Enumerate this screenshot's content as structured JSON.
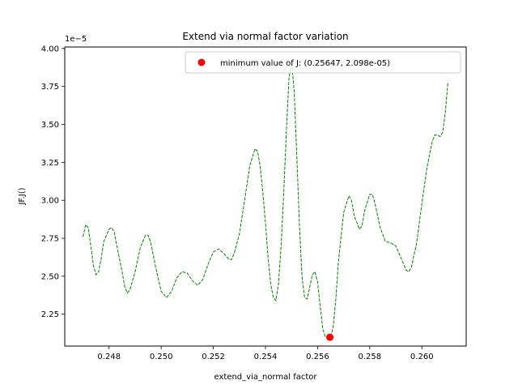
{
  "chart_data": {
    "type": "line",
    "title": "Extend via normal factor variation",
    "xlabel": "extend_via_normal factor",
    "ylabel": "JF.J()",
    "y_offset_text": "1e−5",
    "y_scale_exp": -5,
    "xlim": [
      0.2463,
      0.2617
    ],
    "ylim": [
      2.04,
      4.01
    ],
    "x_ticks": [
      0.248,
      0.25,
      0.252,
      0.254,
      0.256,
      0.258,
      0.26
    ],
    "x_tick_labels": [
      "0.248",
      "0.250",
      "0.252",
      "0.254",
      "0.256",
      "0.258",
      "0.260"
    ],
    "y_ticks": [
      2.25,
      2.5,
      2.75,
      3.0,
      3.25,
      3.5,
      3.75,
      4.0
    ],
    "y_tick_labels": [
      "2.25",
      "2.50",
      "2.75",
      "3.00",
      "3.25",
      "3.50",
      "3.75",
      "4.00"
    ],
    "grid": false,
    "legend_position": "top-right",
    "series": [
      {
        "color": "#008000",
        "linestyle": "dashed",
        "points": [
          [
            0.247,
            2.76
          ],
          [
            0.2471,
            2.84
          ],
          [
            0.2472,
            2.82
          ],
          [
            0.2473,
            2.7
          ],
          [
            0.2474,
            2.57
          ],
          [
            0.2475,
            2.51
          ],
          [
            0.2476,
            2.53
          ],
          [
            0.2477,
            2.62
          ],
          [
            0.2478,
            2.73
          ],
          [
            0.248,
            2.81
          ],
          [
            0.2481,
            2.82
          ],
          [
            0.2482,
            2.79
          ],
          [
            0.2483,
            2.7
          ],
          [
            0.2485,
            2.53
          ],
          [
            0.2486,
            2.43
          ],
          [
            0.2487,
            2.39
          ],
          [
            0.2488,
            2.41
          ],
          [
            0.249,
            2.53
          ],
          [
            0.2492,
            2.69
          ],
          [
            0.2494,
            2.77
          ],
          [
            0.2495,
            2.77
          ],
          [
            0.2496,
            2.72
          ],
          [
            0.2498,
            2.55
          ],
          [
            0.25,
            2.4
          ],
          [
            0.2502,
            2.36
          ],
          [
            0.2504,
            2.4
          ],
          [
            0.2506,
            2.49
          ],
          [
            0.2508,
            2.53
          ],
          [
            0.251,
            2.52
          ],
          [
            0.2512,
            2.47
          ],
          [
            0.2514,
            2.44
          ],
          [
            0.2516,
            2.48
          ],
          [
            0.2518,
            2.58
          ],
          [
            0.252,
            2.66
          ],
          [
            0.2522,
            2.68
          ],
          [
            0.2524,
            2.65
          ],
          [
            0.2526,
            2.61
          ],
          [
            0.2527,
            2.61
          ],
          [
            0.2528,
            2.65
          ],
          [
            0.253,
            2.78
          ],
          [
            0.2532,
            3.0
          ],
          [
            0.2534,
            3.23
          ],
          [
            0.2536,
            3.34
          ],
          [
            0.2537,
            3.32
          ],
          [
            0.2538,
            3.22
          ],
          [
            0.2539,
            3.05
          ],
          [
            0.254,
            2.85
          ],
          [
            0.2541,
            2.62
          ],
          [
            0.2542,
            2.45
          ],
          [
            0.2543,
            2.36
          ],
          [
            0.2544,
            2.34
          ],
          [
            0.2545,
            2.45
          ],
          [
            0.2546,
            2.7
          ],
          [
            0.2547,
            3.05
          ],
          [
            0.2548,
            3.45
          ],
          [
            0.2549,
            3.8
          ],
          [
            0.255,
            3.92
          ],
          [
            0.2551,
            3.72
          ],
          [
            0.2552,
            3.3
          ],
          [
            0.2553,
            2.85
          ],
          [
            0.2554,
            2.5
          ],
          [
            0.2555,
            2.36
          ],
          [
            0.2556,
            2.35
          ],
          [
            0.2557,
            2.43
          ],
          [
            0.2558,
            2.51
          ],
          [
            0.2559,
            2.53
          ],
          [
            0.256,
            2.46
          ],
          [
            0.2561,
            2.3
          ],
          [
            0.2562,
            2.15
          ],
          [
            0.2563,
            2.1
          ],
          [
            0.2565,
            2.1
          ],
          [
            0.2566,
            2.17
          ],
          [
            0.2567,
            2.35
          ],
          [
            0.2568,
            2.6
          ],
          [
            0.257,
            2.92
          ],
          [
            0.2572,
            3.03
          ],
          [
            0.2573,
            3.0
          ],
          [
            0.2574,
            2.9
          ],
          [
            0.2576,
            2.81
          ],
          [
            0.2577,
            2.83
          ],
          [
            0.2578,
            2.93
          ],
          [
            0.258,
            3.04
          ],
          [
            0.2581,
            3.04
          ],
          [
            0.2582,
            2.98
          ],
          [
            0.2584,
            2.82
          ],
          [
            0.2586,
            2.73
          ],
          [
            0.2588,
            2.72
          ],
          [
            0.259,
            2.7
          ],
          [
            0.2592,
            2.62
          ],
          [
            0.2594,
            2.54
          ],
          [
            0.2595,
            2.53
          ],
          [
            0.2596,
            2.56
          ],
          [
            0.2598,
            2.72
          ],
          [
            0.26,
            2.98
          ],
          [
            0.2602,
            3.22
          ],
          [
            0.2604,
            3.39
          ],
          [
            0.2605,
            3.43
          ],
          [
            0.2606,
            3.43
          ],
          [
            0.2607,
            3.42
          ],
          [
            0.2608,
            3.45
          ],
          [
            0.2609,
            3.58
          ],
          [
            0.261,
            3.78
          ]
        ]
      }
    ],
    "minimum": {
      "label": "minimum value of J: (0.25647, 2.098e-05)",
      "x": 0.25647,
      "y": 2.098,
      "color": "#ff0000"
    }
  }
}
